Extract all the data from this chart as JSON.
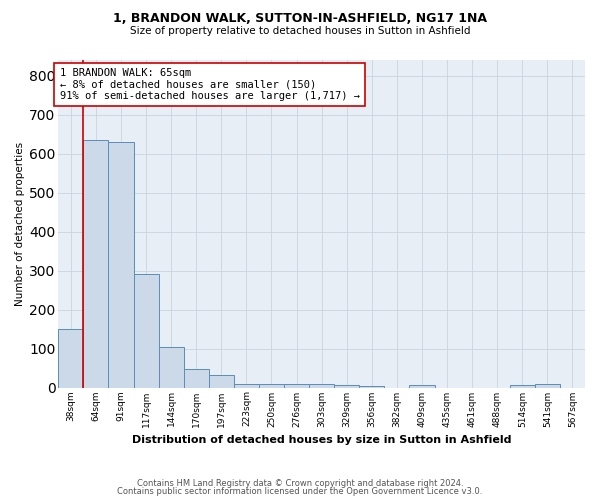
{
  "title": "1, BRANDON WALK, SUTTON-IN-ASHFIELD, NG17 1NA",
  "subtitle": "Size of property relative to detached houses in Sutton in Ashfield",
  "xlabel": "Distribution of detached houses by size in Sutton in Ashfield",
  "ylabel": "Number of detached properties",
  "footnote1": "Contains HM Land Registry data © Crown copyright and database right 2024.",
  "footnote2": "Contains public sector information licensed under the Open Government Licence v3.0.",
  "categories": [
    "38sqm",
    "64sqm",
    "91sqm",
    "117sqm",
    "144sqm",
    "170sqm",
    "197sqm",
    "223sqm",
    "250sqm",
    "276sqm",
    "303sqm",
    "329sqm",
    "356sqm",
    "382sqm",
    "409sqm",
    "435sqm",
    "461sqm",
    "488sqm",
    "514sqm",
    "541sqm",
    "567sqm"
  ],
  "values": [
    150,
    635,
    630,
    290,
    105,
    47,
    32,
    10,
    10,
    8,
    8,
    7,
    5,
    0,
    7,
    0,
    0,
    0,
    7,
    10,
    0
  ],
  "bar_color": "#ccd9e8",
  "bar_edge_color": "#5b8db8",
  "grid_color": "#c8d4e0",
  "annotation_line_color": "#cc0000",
  "annotation_box_color": "#cc0000",
  "annotation_text": "1 BRANDON WALK: 65sqm\n← 8% of detached houses are smaller (150)\n91% of semi-detached houses are larger (1,717) →",
  "ylim": [
    0,
    840
  ],
  "yticks": [
    0,
    100,
    200,
    300,
    400,
    500,
    600,
    700,
    800
  ],
  "property_line_x": 0.5,
  "bg_color": "#e8eef5"
}
